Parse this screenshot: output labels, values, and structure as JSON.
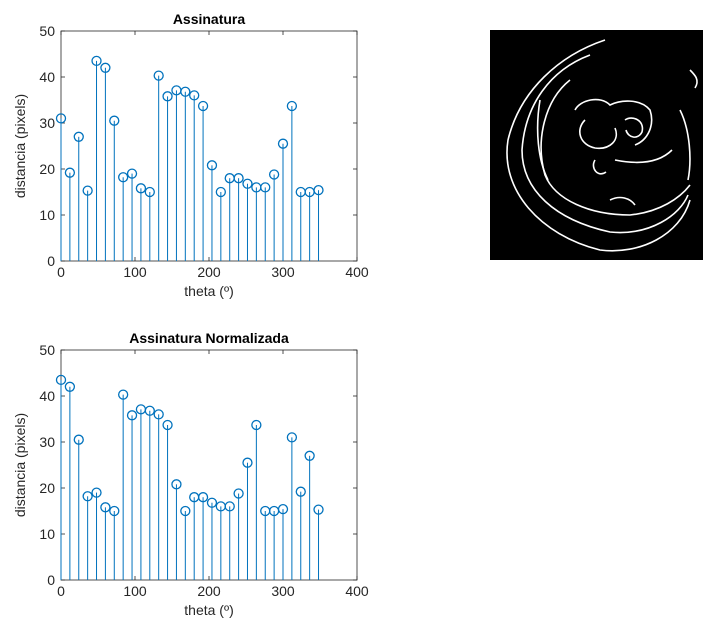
{
  "chart_data": [
    {
      "type": "stem",
      "title": "Assinatura",
      "xlabel": "theta (º)",
      "ylabel": "distancia (pixels)",
      "x": [
        0,
        12,
        24,
        36,
        48,
        60,
        72,
        84,
        96,
        108,
        120,
        132,
        144,
        156,
        168,
        180,
        192,
        204,
        216,
        228,
        240,
        252,
        264,
        276,
        288,
        300,
        312,
        324,
        336,
        348
      ],
      "series": [
        {
          "color": "#0072bd",
          "values": [
            31,
            19.2,
            27,
            15.3,
            43.5,
            42,
            30.5,
            18.2,
            19,
            15.8,
            15,
            40.3,
            35.8,
            37.1,
            36.8,
            36,
            33.7,
            20.8,
            15,
            18,
            18,
            16.8,
            16,
            16,
            18.8,
            25.5,
            33.7,
            15,
            15,
            15.4
          ]
        }
      ],
      "xlim": [
        0,
        400
      ],
      "xticks": [
        0,
        100,
        200,
        300,
        400
      ],
      "ylim": [
        0,
        50
      ],
      "yticks": [
        0,
        10,
        20,
        30,
        40,
        50
      ]
    },
    {
      "type": "stem",
      "title": "Assinatura Normalizada",
      "xlabel": "theta (º)",
      "ylabel": "distancia (pixels)",
      "x": [
        0,
        12,
        24,
        36,
        48,
        60,
        72,
        84,
        96,
        108,
        120,
        132,
        144,
        156,
        168,
        180,
        192,
        204,
        216,
        228,
        240,
        252,
        264,
        276,
        288,
        300,
        312,
        324,
        336,
        348
      ],
      "series": [
        {
          "color": "#0072bd",
          "values": [
            43.5,
            42,
            30.5,
            18.2,
            19,
            15.8,
            15,
            40.3,
            35.8,
            37.1,
            36.8,
            36,
            33.7,
            20.8,
            15,
            18,
            18,
            16.8,
            16,
            16,
            18.8,
            25.5,
            33.7,
            15,
            15,
            15.4,
            31,
            19.2,
            27,
            15.3
          ]
        }
      ],
      "xlim": [
        0,
        400
      ],
      "xticks": [
        0,
        100,
        200,
        300,
        400
      ],
      "ylim": [
        0,
        50
      ],
      "yticks": [
        0,
        10,
        20,
        30,
        40,
        50
      ]
    }
  ]
}
